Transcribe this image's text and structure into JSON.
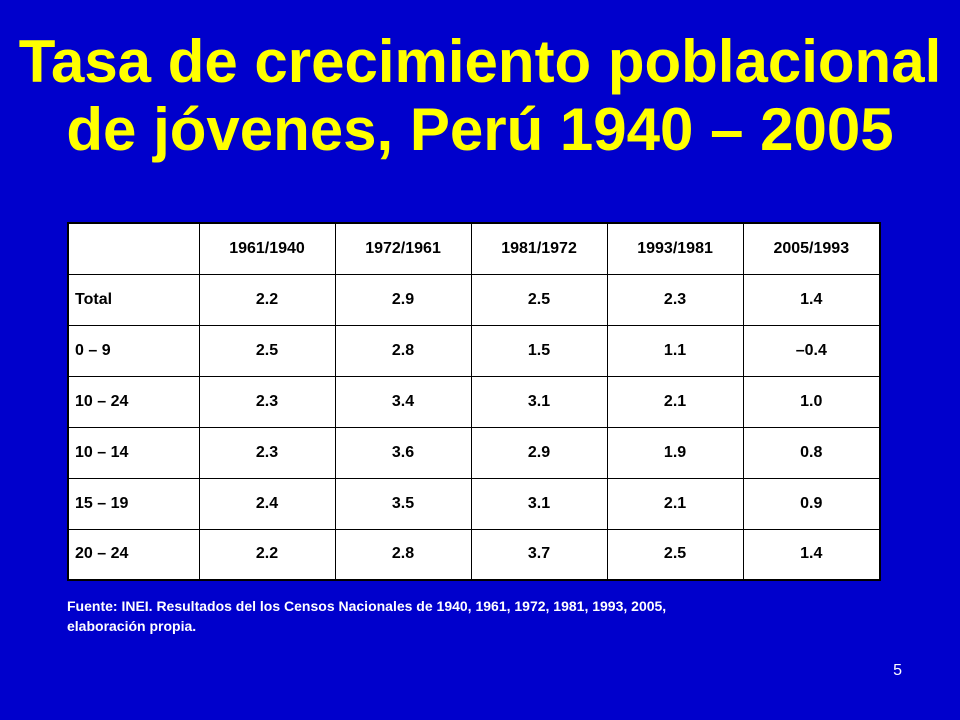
{
  "slide": {
    "title_line1": "Tasa de crecimiento poblacional",
    "title_line2": "de jóvenes, Perú 1940 – 2005",
    "page_number": "5"
  },
  "colors": {
    "background": "#0000CC",
    "title": "#FFFF00",
    "table_background": "#FFFFFF",
    "source_text": "#FFFFFF"
  },
  "table": {
    "columns": [
      "",
      "1961/1940",
      "1972/1961",
      "1981/1972",
      "1993/1981",
      "2005/1993"
    ],
    "rows": [
      [
        "Total",
        "2.2",
        "2.9",
        "2.5",
        "2.3",
        "1.4"
      ],
      [
        "0 – 9",
        "2.5",
        "2.8",
        "1.5",
        "1.1",
        "–0.4"
      ],
      [
        "10 – 24",
        "2.3",
        "3.4",
        "3.1",
        "2.1",
        "1.0"
      ],
      [
        "10 – 14",
        "2.3",
        "3.6",
        "2.9",
        "1.9",
        "0.8"
      ],
      [
        "15 – 19",
        "2.4",
        "3.5",
        "3.1",
        "2.1",
        "0.9"
      ],
      [
        "20 – 24",
        "2.2",
        "2.8",
        "3.7",
        "2.5",
        "1.4"
      ]
    ]
  },
  "source": {
    "line1": "Fuente: INEI. Resultados del los Censos Nacionales de 1940, 1961, 1972, 1981, 1993, 2005,",
    "line2": "elaboración propia."
  }
}
